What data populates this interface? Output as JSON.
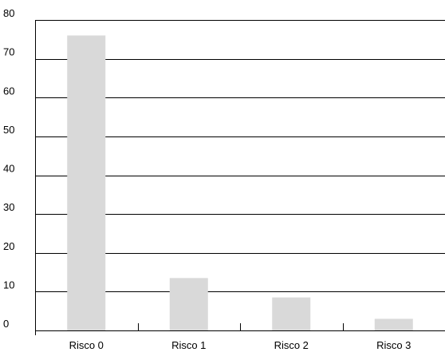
{
  "chart_data": {
    "type": "bar",
    "categories": [
      "Risco 0",
      "Risco 1",
      "Risco 2",
      "Risco 3"
    ],
    "values": [
      76,
      13.5,
      8.5,
      3
    ],
    "title": "",
    "xlabel": "",
    "ylabel": "",
    "ylim": [
      0,
      80
    ],
    "yticks": [
      0,
      10,
      20,
      30,
      40,
      50,
      60,
      70,
      80
    ],
    "grid": true,
    "legend": "none",
    "colors": {
      "bar": "#d9d9d9",
      "grid": "#000000",
      "axis": "#000000",
      "text": "#000000"
    }
  }
}
